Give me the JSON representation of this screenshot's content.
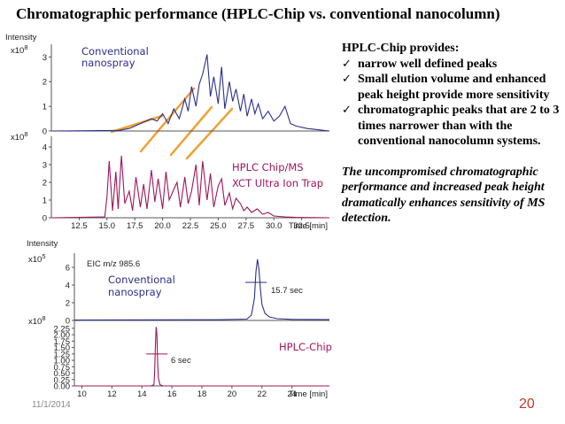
{
  "title": "Chromatographic performance (HPLC-Chip vs. conventional nanocolumn)",
  "notes": {
    "heading": "HPLC-Chip provides:",
    "check_icon": "check-icon",
    "bullets": [
      "narrow well defined peaks",
      "Small elution volume and enhanced peak height provide more sensitivity",
      "chromatographic peaks that are 2 to 3 times narrower than with the conventional nanocolumn systems."
    ],
    "conclusion": "The uncompromised chromatographic performance and increased peak height dramatically enhances sensitivity of MS detection."
  },
  "footer": {
    "date": "11/1/2014",
    "page": "20"
  },
  "colors": {
    "conventional": "#2b2f8c",
    "chip": "#a0155a",
    "connector": "#f0a030",
    "page_number": "#c0392b"
  },
  "chart_data": [
    {
      "type": "line",
      "title": "",
      "x_tick_labels": [
        "12.5",
        "15.0",
        "17.5",
        "20.0",
        "22.5",
        "25.0",
        "27.5",
        "30.0",
        "32.5"
      ],
      "x_unit_label": "Time [min]",
      "xlim": [
        10,
        35
      ],
      "panels": [
        {
          "name": "Conventional nanospray",
          "ylabel": "Intensity",
          "y_exponent_label": "x10",
          "y_exponent": "8",
          "y_tick_labels": [
            "0",
            "1",
            "2",
            "3"
          ],
          "ylim": [
            0,
            3.3
          ],
          "x": [
            10,
            16,
            17,
            18,
            19,
            19.5,
            20,
            20.5,
            21,
            21.5,
            22,
            22.3,
            22.6,
            23,
            23.3,
            23.6,
            24,
            24.3,
            24.6,
            25,
            25.3,
            25.6,
            26,
            26.3,
            26.6,
            27,
            27.3,
            27.6,
            28,
            28.3,
            28.6,
            29,
            29.5,
            30,
            30.5,
            31,
            31.5,
            32,
            33,
            34,
            35
          ],
          "y": [
            0,
            0.02,
            0.1,
            0.3,
            0.5,
            0.4,
            0.7,
            0.3,
            0.9,
            0.5,
            1.3,
            0.8,
            1.8,
            1.0,
            1.9,
            2.3,
            3.1,
            1.4,
            2.2,
            1.1,
            2.6,
            0.9,
            2.0,
            1.2,
            1.7,
            0.8,
            1.5,
            0.6,
            1.3,
            0.7,
            1.1,
            0.5,
            0.8,
            0.4,
            0.6,
            1.0,
            0.3,
            0.2,
            0.1,
            0.05,
            0
          ]
        },
        {
          "name": "HPLC Chip/MS XCT Ultra Ion Trap",
          "ylabel": "",
          "y_exponent_label": "x10",
          "y_exponent": "8",
          "y_tick_labels": [
            "0",
            "1",
            "2",
            "3",
            "4"
          ],
          "ylim": [
            0,
            4.3
          ],
          "x": [
            10,
            14.8,
            15,
            15.2,
            15.5,
            15.8,
            16,
            16.3,
            16.6,
            17,
            17.3,
            17.6,
            18,
            18.3,
            18.6,
            19,
            19.3,
            19.6,
            20,
            20.3,
            20.6,
            21,
            21.3,
            21.6,
            22,
            22.3,
            22.6,
            23,
            23.3,
            23.6,
            24,
            24.3,
            24.6,
            25,
            25.3,
            25.6,
            26,
            26.3,
            26.6,
            27,
            27.3,
            27.6,
            28,
            28.5,
            29,
            29.5,
            30,
            31,
            32,
            35
          ],
          "y": [
            0,
            0.05,
            1.2,
            3.2,
            0.4,
            2.6,
            0.5,
            3.5,
            0.8,
            1.5,
            0.4,
            2.3,
            0.6,
            1.9,
            0.5,
            2.7,
            0.9,
            2.2,
            0.5,
            2.6,
            1.0,
            1.6,
            2.0,
            0.6,
            2.3,
            0.8,
            1.5,
            3.0,
            0.7,
            3.2,
            1.0,
            2.5,
            0.6,
            1.8,
            2.2,
            0.7,
            1.4,
            0.5,
            1.1,
            0.8,
            0.4,
            0.6,
            0.3,
            0.5,
            0.2,
            0.3,
            0.1,
            0.05,
            0.02,
            0
          ]
        }
      ]
    },
    {
      "type": "line",
      "title": "",
      "x_tick_labels": [
        "10",
        "12",
        "14",
        "16",
        "18",
        "20",
        "22",
        "24"
      ],
      "x_unit_label": "Time [min]",
      "xlim": [
        9.5,
        26.5
      ],
      "panels": [
        {
          "name": "Conventional nanospray",
          "ylabel": "Intensity",
          "trace_label": "EIC  m/z 985.6",
          "y_exponent_label": "x10",
          "y_exponent": "5",
          "y_tick_labels": [
            "0",
            "2",
            "4",
            "6"
          ],
          "ylim": [
            0,
            7
          ],
          "peak_width_label": "15.7 sec",
          "x": [
            9.5,
            19,
            21,
            21.3,
            21.5,
            21.6,
            21.7,
            21.8,
            21.9,
            22.0,
            22.2,
            22.5,
            23,
            24,
            26.5
          ],
          "y": [
            0.05,
            0.08,
            0.15,
            0.6,
            2.5,
            5.5,
            6.9,
            5.8,
            3.5,
            1.8,
            0.8,
            0.4,
            0.2,
            0.12,
            0.1
          ]
        },
        {
          "name": "HPLC-Chip",
          "ylabel": "",
          "y_exponent_label": "x10",
          "y_exponent": "8",
          "y_tick_labels": [
            "0.00",
            "0.25",
            "0.50",
            "0.75",
            "1.00",
            "1.25",
            "1.50",
            "1.75",
            "2.00",
            "2.25"
          ],
          "ylim": [
            0,
            2.35
          ],
          "peak_width_label": "6 sec",
          "x": [
            9.5,
            14.6,
            14.8,
            14.85,
            14.9,
            14.95,
            15.0,
            15.05,
            15.1,
            15.2,
            15.4,
            26.5
          ],
          "y": [
            0,
            0.0,
            0.05,
            0.5,
            1.6,
            2.3,
            2.0,
            0.9,
            0.3,
            0.05,
            0.0,
            0
          ]
        }
      ]
    }
  ]
}
